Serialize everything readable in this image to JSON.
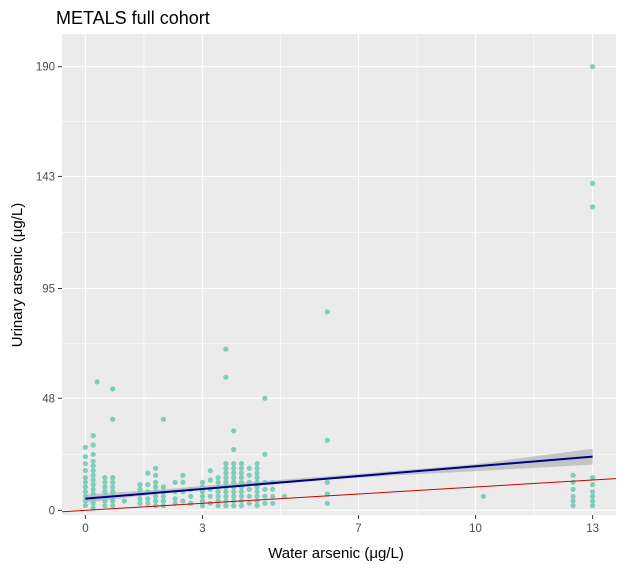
{
  "chart_data": {
    "type": "scatter",
    "title": "METALS full cohort",
    "xlabel": "Water arsenic (μg/L)",
    "ylabel": "Urinary arsenic (μg/L)",
    "xlim": [
      -0.6,
      13.6
    ],
    "ylim": [
      -2,
      204
    ],
    "x_ticks": [
      0,
      3,
      7,
      10,
      13
    ],
    "y_ticks": [
      0,
      48,
      95,
      143,
      190
    ],
    "grid": true,
    "background": "#ebebeb",
    "colors": {
      "points": "#7fcdbb",
      "fit_line": "#00008b",
      "confidence_band": "#bdbdbd",
      "reference_line": "#cc0000"
    },
    "series": [
      {
        "points": [
          [
            0.0,
            2
          ],
          [
            0.0,
            4
          ],
          [
            0.0,
            6
          ],
          [
            0.0,
            8
          ],
          [
            0.0,
            10
          ],
          [
            0.0,
            12
          ],
          [
            0.0,
            14
          ],
          [
            0.0,
            17
          ],
          [
            0.0,
            20
          ],
          [
            0.0,
            23
          ],
          [
            0.0,
            27
          ],
          [
            0.2,
            1
          ],
          [
            0.2,
            3
          ],
          [
            0.2,
            5
          ],
          [
            0.2,
            7
          ],
          [
            0.2,
            9
          ],
          [
            0.2,
            11
          ],
          [
            0.2,
            13
          ],
          [
            0.2,
            15
          ],
          [
            0.2,
            17
          ],
          [
            0.2,
            19
          ],
          [
            0.2,
            21
          ],
          [
            0.2,
            24
          ],
          [
            0.2,
            28
          ],
          [
            0.2,
            32
          ],
          [
            0.3,
            55
          ],
          [
            0.5,
            2
          ],
          [
            0.5,
            4
          ],
          [
            0.5,
            6
          ],
          [
            0.5,
            8
          ],
          [
            0.5,
            10
          ],
          [
            0.5,
            12
          ],
          [
            0.5,
            14
          ],
          [
            0.7,
            2
          ],
          [
            0.7,
            4
          ],
          [
            0.7,
            6
          ],
          [
            0.7,
            8
          ],
          [
            0.7,
            10
          ],
          [
            0.7,
            12
          ],
          [
            0.7,
            14
          ],
          [
            0.7,
            39
          ],
          [
            0.7,
            52
          ],
          [
            1.0,
            4
          ],
          [
            1.4,
            3
          ],
          [
            1.4,
            5
          ],
          [
            1.4,
            7
          ],
          [
            1.4,
            9
          ],
          [
            1.4,
            11
          ],
          [
            1.6,
            3
          ],
          [
            1.6,
            5
          ],
          [
            1.6,
            8
          ],
          [
            1.6,
            11
          ],
          [
            1.6,
            16
          ],
          [
            1.8,
            2
          ],
          [
            1.8,
            4
          ],
          [
            1.8,
            6
          ],
          [
            1.8,
            8
          ],
          [
            1.8,
            10
          ],
          [
            1.8,
            12
          ],
          [
            1.8,
            15
          ],
          [
            1.8,
            18
          ],
          [
            2.0,
            2
          ],
          [
            2.0,
            4
          ],
          [
            2.0,
            6
          ],
          [
            2.0,
            8
          ],
          [
            2.0,
            10
          ],
          [
            2.0,
            39
          ],
          [
            2.3,
            3
          ],
          [
            2.3,
            5
          ],
          [
            2.3,
            8
          ],
          [
            2.3,
            12
          ],
          [
            2.5,
            4
          ],
          [
            2.5,
            8
          ],
          [
            2.5,
            12
          ],
          [
            2.5,
            15
          ],
          [
            2.7,
            3
          ],
          [
            2.7,
            6
          ],
          [
            2.7,
            9
          ],
          [
            3.0,
            2
          ],
          [
            3.0,
            4
          ],
          [
            3.0,
            6
          ],
          [
            3.0,
            8
          ],
          [
            3.0,
            10
          ],
          [
            3.0,
            12
          ],
          [
            3.2,
            3
          ],
          [
            3.2,
            6
          ],
          [
            3.2,
            9
          ],
          [
            3.2,
            13
          ],
          [
            3.2,
            17
          ],
          [
            3.4,
            2
          ],
          [
            3.4,
            4
          ],
          [
            3.4,
            6
          ],
          [
            3.4,
            8
          ],
          [
            3.4,
            10
          ],
          [
            3.4,
            12
          ],
          [
            3.4,
            14
          ],
          [
            3.6,
            2
          ],
          [
            3.6,
            4
          ],
          [
            3.6,
            6
          ],
          [
            3.6,
            8
          ],
          [
            3.6,
            10
          ],
          [
            3.6,
            12
          ],
          [
            3.6,
            14
          ],
          [
            3.6,
            16
          ],
          [
            3.6,
            18
          ],
          [
            3.6,
            20
          ],
          [
            3.6,
            57
          ],
          [
            3.6,
            69
          ],
          [
            3.8,
            2
          ],
          [
            3.8,
            4
          ],
          [
            3.8,
            6
          ],
          [
            3.8,
            8
          ],
          [
            3.8,
            10
          ],
          [
            3.8,
            12
          ],
          [
            3.8,
            14
          ],
          [
            3.8,
            16
          ],
          [
            3.8,
            18
          ],
          [
            3.8,
            20
          ],
          [
            3.8,
            26
          ],
          [
            3.8,
            34
          ],
          [
            4.0,
            2
          ],
          [
            4.0,
            4
          ],
          [
            4.0,
            6
          ],
          [
            4.0,
            8
          ],
          [
            4.0,
            10
          ],
          [
            4.0,
            12
          ],
          [
            4.0,
            14
          ],
          [
            4.0,
            16
          ],
          [
            4.0,
            18
          ],
          [
            4.0,
            20
          ],
          [
            4.2,
            3
          ],
          [
            4.2,
            6
          ],
          [
            4.2,
            9
          ],
          [
            4.2,
            12
          ],
          [
            4.2,
            15
          ],
          [
            4.2,
            18
          ],
          [
            4.4,
            2
          ],
          [
            4.4,
            4
          ],
          [
            4.4,
            6
          ],
          [
            4.4,
            8
          ],
          [
            4.4,
            10
          ],
          [
            4.4,
            12
          ],
          [
            4.4,
            14
          ],
          [
            4.4,
            16
          ],
          [
            4.4,
            18
          ],
          [
            4.4,
            20
          ],
          [
            4.6,
            3
          ],
          [
            4.6,
            6
          ],
          [
            4.6,
            9
          ],
          [
            4.6,
            12
          ],
          [
            4.6,
            24
          ],
          [
            4.6,
            48
          ],
          [
            4.8,
            3
          ],
          [
            4.8,
            6
          ],
          [
            4.8,
            9
          ],
          [
            4.8,
            12
          ],
          [
            5.1,
            6
          ],
          [
            6.2,
            3
          ],
          [
            6.2,
            7
          ],
          [
            6.2,
            12
          ],
          [
            6.2,
            30
          ],
          [
            6.2,
            85
          ],
          [
            10.2,
            6
          ],
          [
            12.5,
            2
          ],
          [
            12.5,
            4
          ],
          [
            12.5,
            6
          ],
          [
            12.5,
            9
          ],
          [
            12.5,
            12
          ],
          [
            12.5,
            15
          ],
          [
            13.0,
            2
          ],
          [
            13.0,
            4
          ],
          [
            13.0,
            6
          ],
          [
            13.0,
            8
          ],
          [
            13.0,
            11
          ],
          [
            13.0,
            14
          ],
          [
            13.0,
            130
          ],
          [
            13.0,
            140
          ],
          [
            13.0,
            190
          ]
        ]
      }
    ],
    "fit_line": {
      "x": [
        0,
        13
      ],
      "y": [
        5,
        23
      ]
    },
    "confidence_band": {
      "x": [
        0,
        2,
        4,
        6,
        8,
        10,
        13
      ],
      "lo": [
        3.2,
        7.4,
        10.6,
        13.0,
        15.0,
        16.8,
        19.6
      ],
      "hi": [
        6.8,
        9.0,
        11.8,
        14.3,
        17.0,
        19.8,
        26.4
      ]
    },
    "reference_line": {
      "x": [
        -0.6,
        13.6
      ],
      "y": [
        -0.6,
        13.6
      ]
    }
  }
}
